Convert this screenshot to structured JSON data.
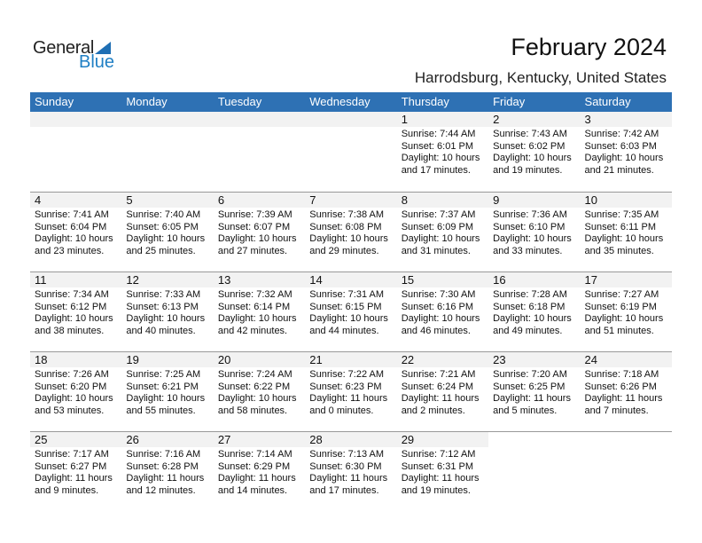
{
  "logo": {
    "line1": "General",
    "line2": "Blue"
  },
  "title": "February 2024",
  "subtitle": "Harrodsburg, Kentucky, United States",
  "colors": {
    "header": "#2e71b4",
    "day_strip": "#f2f2f2",
    "logo_blue": "#1f7fc4"
  },
  "weekdays": [
    "Sunday",
    "Monday",
    "Tuesday",
    "Wednesday",
    "Thursday",
    "Friday",
    "Saturday"
  ],
  "weeks": [
    [
      null,
      null,
      null,
      null,
      {
        "day": "1",
        "sunrise": "Sunrise: 7:44 AM",
        "sunset": "Sunset: 6:01 PM",
        "daylight1": "Daylight: 10 hours",
        "daylight2": "and 17 minutes."
      },
      {
        "day": "2",
        "sunrise": "Sunrise: 7:43 AM",
        "sunset": "Sunset: 6:02 PM",
        "daylight1": "Daylight: 10 hours",
        "daylight2": "and 19 minutes."
      },
      {
        "day": "3",
        "sunrise": "Sunrise: 7:42 AM",
        "sunset": "Sunset: 6:03 PM",
        "daylight1": "Daylight: 10 hours",
        "daylight2": "and 21 minutes."
      }
    ],
    [
      {
        "day": "4",
        "sunrise": "Sunrise: 7:41 AM",
        "sunset": "Sunset: 6:04 PM",
        "daylight1": "Daylight: 10 hours",
        "daylight2": "and 23 minutes."
      },
      {
        "day": "5",
        "sunrise": "Sunrise: 7:40 AM",
        "sunset": "Sunset: 6:05 PM",
        "daylight1": "Daylight: 10 hours",
        "daylight2": "and 25 minutes."
      },
      {
        "day": "6",
        "sunrise": "Sunrise: 7:39 AM",
        "sunset": "Sunset: 6:07 PM",
        "daylight1": "Daylight: 10 hours",
        "daylight2": "and 27 minutes."
      },
      {
        "day": "7",
        "sunrise": "Sunrise: 7:38 AM",
        "sunset": "Sunset: 6:08 PM",
        "daylight1": "Daylight: 10 hours",
        "daylight2": "and 29 minutes."
      },
      {
        "day": "8",
        "sunrise": "Sunrise: 7:37 AM",
        "sunset": "Sunset: 6:09 PM",
        "daylight1": "Daylight: 10 hours",
        "daylight2": "and 31 minutes."
      },
      {
        "day": "9",
        "sunrise": "Sunrise: 7:36 AM",
        "sunset": "Sunset: 6:10 PM",
        "daylight1": "Daylight: 10 hours",
        "daylight2": "and 33 minutes."
      },
      {
        "day": "10",
        "sunrise": "Sunrise: 7:35 AM",
        "sunset": "Sunset: 6:11 PM",
        "daylight1": "Daylight: 10 hours",
        "daylight2": "and 35 minutes."
      }
    ],
    [
      {
        "day": "11",
        "sunrise": "Sunrise: 7:34 AM",
        "sunset": "Sunset: 6:12 PM",
        "daylight1": "Daylight: 10 hours",
        "daylight2": "and 38 minutes."
      },
      {
        "day": "12",
        "sunrise": "Sunrise: 7:33 AM",
        "sunset": "Sunset: 6:13 PM",
        "daylight1": "Daylight: 10 hours",
        "daylight2": "and 40 minutes."
      },
      {
        "day": "13",
        "sunrise": "Sunrise: 7:32 AM",
        "sunset": "Sunset: 6:14 PM",
        "daylight1": "Daylight: 10 hours",
        "daylight2": "and 42 minutes."
      },
      {
        "day": "14",
        "sunrise": "Sunrise: 7:31 AM",
        "sunset": "Sunset: 6:15 PM",
        "daylight1": "Daylight: 10 hours",
        "daylight2": "and 44 minutes."
      },
      {
        "day": "15",
        "sunrise": "Sunrise: 7:30 AM",
        "sunset": "Sunset: 6:16 PM",
        "daylight1": "Daylight: 10 hours",
        "daylight2": "and 46 minutes."
      },
      {
        "day": "16",
        "sunrise": "Sunrise: 7:28 AM",
        "sunset": "Sunset: 6:18 PM",
        "daylight1": "Daylight: 10 hours",
        "daylight2": "and 49 minutes."
      },
      {
        "day": "17",
        "sunrise": "Sunrise: 7:27 AM",
        "sunset": "Sunset: 6:19 PM",
        "daylight1": "Daylight: 10 hours",
        "daylight2": "and 51 minutes."
      }
    ],
    [
      {
        "day": "18",
        "sunrise": "Sunrise: 7:26 AM",
        "sunset": "Sunset: 6:20 PM",
        "daylight1": "Daylight: 10 hours",
        "daylight2": "and 53 minutes."
      },
      {
        "day": "19",
        "sunrise": "Sunrise: 7:25 AM",
        "sunset": "Sunset: 6:21 PM",
        "daylight1": "Daylight: 10 hours",
        "daylight2": "and 55 minutes."
      },
      {
        "day": "20",
        "sunrise": "Sunrise: 7:24 AM",
        "sunset": "Sunset: 6:22 PM",
        "daylight1": "Daylight: 10 hours",
        "daylight2": "and 58 minutes."
      },
      {
        "day": "21",
        "sunrise": "Sunrise: 7:22 AM",
        "sunset": "Sunset: 6:23 PM",
        "daylight1": "Daylight: 11 hours",
        "daylight2": "and 0 minutes."
      },
      {
        "day": "22",
        "sunrise": "Sunrise: 7:21 AM",
        "sunset": "Sunset: 6:24 PM",
        "daylight1": "Daylight: 11 hours",
        "daylight2": "and 2 minutes."
      },
      {
        "day": "23",
        "sunrise": "Sunrise: 7:20 AM",
        "sunset": "Sunset: 6:25 PM",
        "daylight1": "Daylight: 11 hours",
        "daylight2": "and 5 minutes."
      },
      {
        "day": "24",
        "sunrise": "Sunrise: 7:18 AM",
        "sunset": "Sunset: 6:26 PM",
        "daylight1": "Daylight: 11 hours",
        "daylight2": "and 7 minutes."
      }
    ],
    [
      {
        "day": "25",
        "sunrise": "Sunrise: 7:17 AM",
        "sunset": "Sunset: 6:27 PM",
        "daylight1": "Daylight: 11 hours",
        "daylight2": "and 9 minutes."
      },
      {
        "day": "26",
        "sunrise": "Sunrise: 7:16 AM",
        "sunset": "Sunset: 6:28 PM",
        "daylight1": "Daylight: 11 hours",
        "daylight2": "and 12 minutes."
      },
      {
        "day": "27",
        "sunrise": "Sunrise: 7:14 AM",
        "sunset": "Sunset: 6:29 PM",
        "daylight1": "Daylight: 11 hours",
        "daylight2": "and 14 minutes."
      },
      {
        "day": "28",
        "sunrise": "Sunrise: 7:13 AM",
        "sunset": "Sunset: 6:30 PM",
        "daylight1": "Daylight: 11 hours",
        "daylight2": "and 17 minutes."
      },
      {
        "day": "29",
        "sunrise": "Sunrise: 7:12 AM",
        "sunset": "Sunset: 6:31 PM",
        "daylight1": "Daylight: 11 hours",
        "daylight2": "and 19 minutes."
      },
      null,
      null
    ]
  ]
}
